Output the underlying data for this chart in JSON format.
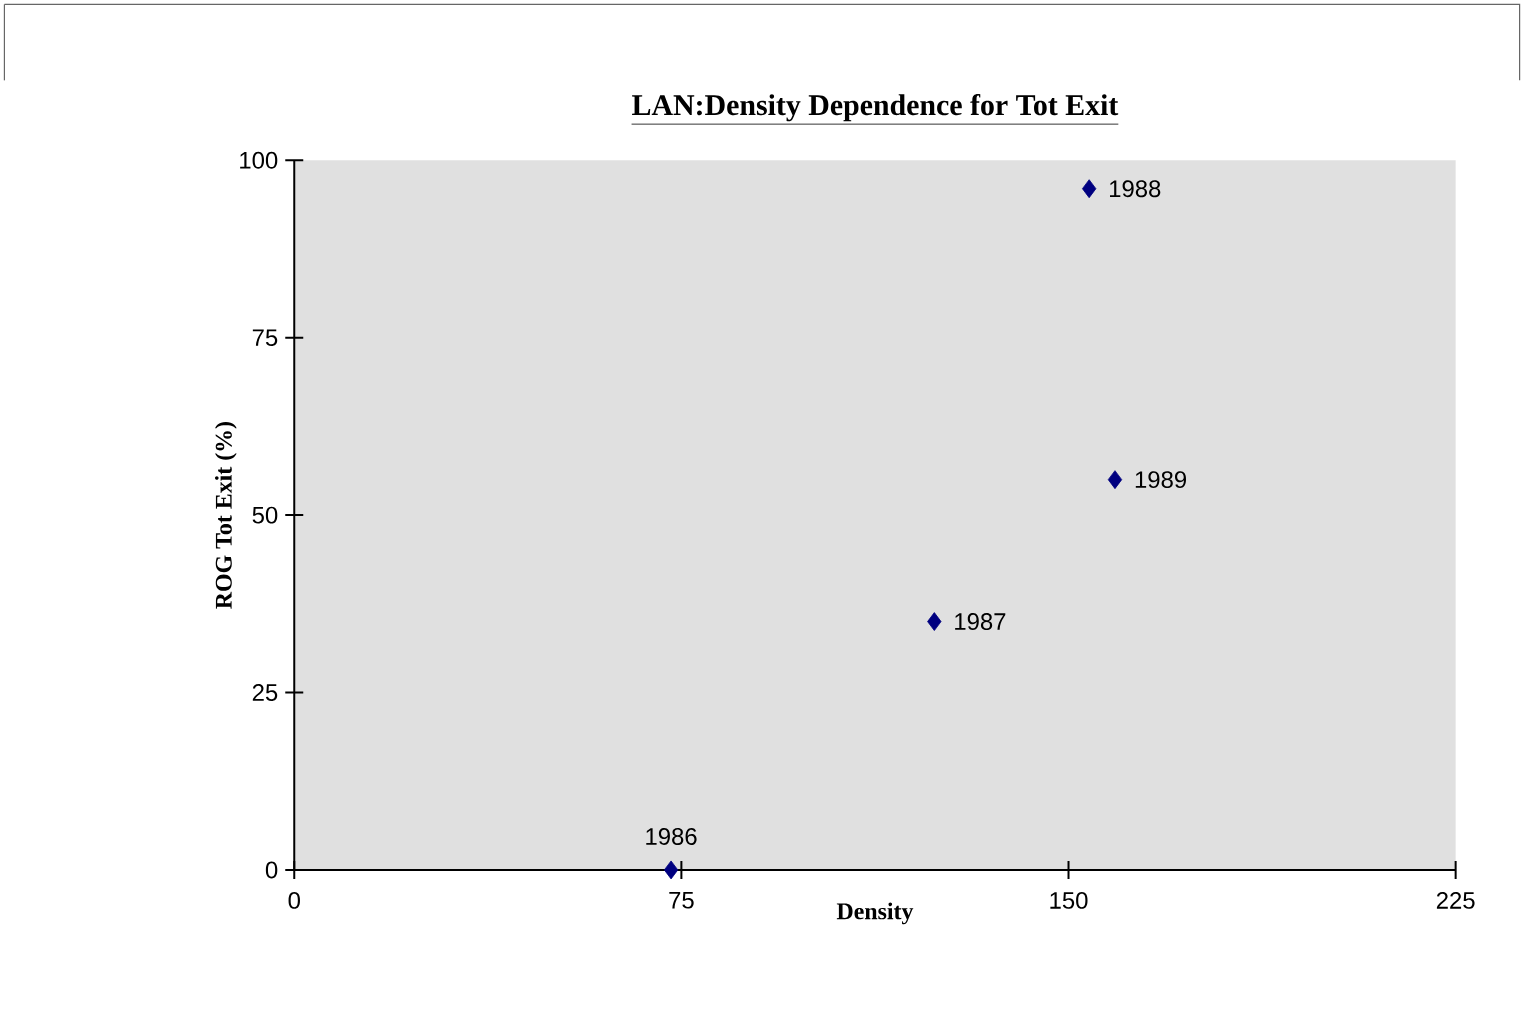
{
  "chart_data": {
    "type": "scatter",
    "title": "LAN:Density Dependence for Tot Exit",
    "xlabel": "Density",
    "ylabel": "ROG Tot Exit (%)",
    "x": [
      73,
      124,
      154,
      159
    ],
    "values": [
      0,
      35,
      96,
      55
    ],
    "color": "#000080",
    "marker": "diamond",
    "xlim": [
      0,
      225
    ],
    "xticks": [
      0,
      75,
      150,
      225
    ],
    "ylim": [
      0,
      100
    ],
    "yticks": [
      0,
      25,
      50,
      75,
      100
    ],
    "annotations": [
      {
        "text": "1986",
        "x": 73,
        "y": 0
      },
      {
        "text": "1987",
        "x": 124,
        "y": 35
      },
      {
        "text": "1988",
        "x": 154,
        "y": 96
      },
      {
        "text": "1989",
        "x": 159,
        "y": 55
      }
    ]
  }
}
